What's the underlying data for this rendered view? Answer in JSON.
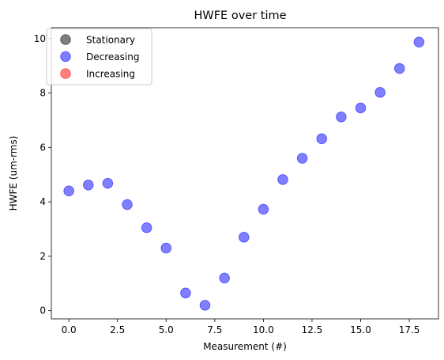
{
  "chart_data": {
    "type": "scatter",
    "title": "HWFE over time",
    "xlabel": "Measurement (#)",
    "ylabel": "HWFE (um-rms)",
    "xlim": [
      -0.9,
      19.0
    ],
    "ylim": [
      -0.3,
      10.4
    ],
    "xticks": [
      0.0,
      2.5,
      5.0,
      7.5,
      10.0,
      12.5,
      15.0,
      17.5
    ],
    "xtick_labels": [
      "0.0",
      "2.5",
      "5.0",
      "7.5",
      "10.0",
      "12.5",
      "15.0",
      "17.5"
    ],
    "yticks": [
      0,
      2,
      4,
      6,
      8,
      10
    ],
    "ytick_labels": [
      "0",
      "2",
      "4",
      "6",
      "8",
      "10"
    ],
    "grid": false,
    "legend_position": "top-left",
    "series": [
      {
        "name": "Stationary",
        "color": "#000000",
        "x": [],
        "y": []
      },
      {
        "name": "Decreasing",
        "color": "#0000ff",
        "x": [
          0,
          1,
          2,
          3,
          4,
          5,
          6,
          7,
          8,
          9,
          10,
          11,
          12,
          13,
          14,
          15,
          16,
          17,
          18
        ],
        "y": [
          4.4,
          4.62,
          4.68,
          3.9,
          3.05,
          2.3,
          0.65,
          0.2,
          1.2,
          2.7,
          3.73,
          4.82,
          5.6,
          6.32,
          7.12,
          7.45,
          8.02,
          8.9,
          9.87
        ]
      },
      {
        "name": "Increasing",
        "color": "#ff0000",
        "x": [],
        "y": []
      }
    ]
  }
}
